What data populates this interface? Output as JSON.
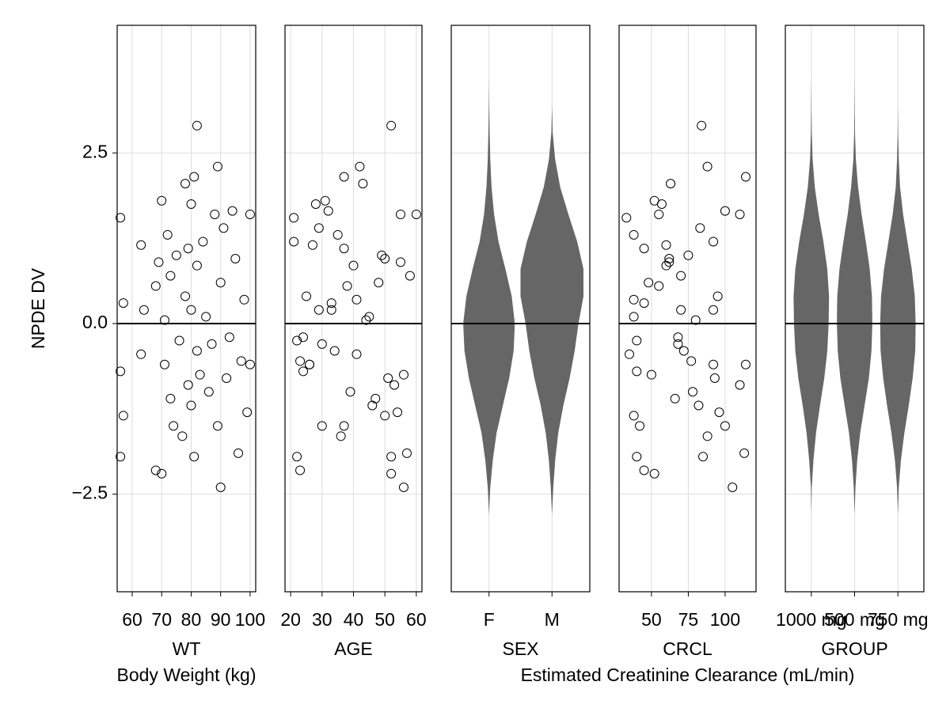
{
  "chart_data": [
    {
      "type": "scatter",
      "xlabel": "WT",
      "xlabel2": "Body Weight (kg)",
      "ylabel": "NPDE DV",
      "ytick_labels": true,
      "xlim": [
        54.9,
        101.9
      ],
      "xticks": [
        60,
        70,
        80,
        90,
        100
      ],
      "ylim": [
        -3.93,
        4.37
      ],
      "yticks": [
        {
          "value": -2.5,
          "label": "−2.5"
        },
        {
          "value": 0,
          "label": "0.0"
        },
        2.5
      ],
      "hline": 0,
      "grid": true,
      "color": "#000000",
      "x": [
        56,
        56,
        56,
        57,
        57,
        63,
        63,
        64,
        68,
        68,
        69,
        70,
        70,
        71,
        71,
        72,
        73,
        73,
        74,
        75,
        76,
        77,
        78,
        78,
        79,
        79,
        80,
        80,
        80,
        81,
        81,
        82,
        82,
        82,
        83,
        84,
        85,
        86,
        87,
        88,
        89,
        89,
        90,
        90,
        91,
        92,
        93,
        94,
        95,
        96,
        97,
        98,
        99,
        100,
        100
      ],
      "y": [
        1.55,
        -0.7,
        -1.95,
        0.3,
        -1.35,
        1.15,
        -0.45,
        0.2,
        -2.15,
        0.55,
        0.9,
        1.8,
        -2.2,
        0.05,
        -0.6,
        1.3,
        -1.1,
        0.7,
        -1.5,
        1.0,
        -0.25,
        -1.65,
        2.05,
        0.4,
        -0.9,
        1.1,
        1.75,
        -1.2,
        0.2,
        2.15,
        -1.95,
        2.9,
        0.85,
        -0.4,
        -0.75,
        1.2,
        0.1,
        -1.0,
        -0.3,
        1.6,
        2.3,
        -1.5,
        -2.4,
        0.6,
        1.4,
        -0.8,
        -0.2,
        1.65,
        0.95,
        -1.9,
        -0.55,
        0.35,
        -1.3,
        1.6,
        -0.6
      ]
    },
    {
      "type": "scatter",
      "xlabel": "AGE",
      "ytick_labels": false,
      "xlim": [
        18.2,
        61.8
      ],
      "xticks": [
        20,
        30,
        40,
        50,
        60
      ],
      "ylim": [
        -3.93,
        4.37
      ],
      "yticks": [
        {
          "value": -2.5,
          "label": "−2.5"
        },
        {
          "value": 0,
          "label": "0.0"
        },
        2.5
      ],
      "hline": 0,
      "grid": true,
      "color": "#000000",
      "x": [
        21,
        24,
        22,
        33,
        50,
        27,
        41,
        29,
        23,
        38,
        55,
        31,
        52,
        44,
        26,
        35,
        47,
        58,
        30,
        49,
        22,
        36,
        43,
        25,
        53,
        37,
        28,
        46,
        33,
        37,
        52,
        52,
        40,
        34,
        56,
        21,
        45,
        39,
        30,
        55,
        42,
        37,
        56,
        48,
        29,
        51,
        24,
        32,
        50,
        57,
        23,
        41,
        54,
        60,
        26
      ],
      "y": [
        1.55,
        -0.7,
        -1.95,
        0.3,
        -1.35,
        1.15,
        -0.45,
        0.2,
        -2.15,
        0.55,
        0.9,
        1.8,
        -2.2,
        0.05,
        -0.6,
        1.3,
        -1.1,
        0.7,
        -1.5,
        1.0,
        -0.25,
        -1.65,
        2.05,
        0.4,
        -0.9,
        1.1,
        1.75,
        -1.2,
        0.2,
        2.15,
        -1.95,
        2.9,
        0.85,
        -0.4,
        -0.75,
        1.2,
        0.1,
        -1.0,
        -0.3,
        1.6,
        2.3,
        -1.5,
        -2.4,
        0.6,
        1.4,
        -0.8,
        -0.2,
        1.65,
        0.95,
        -1.9,
        -0.55,
        0.35,
        -1.3,
        1.6,
        -0.6
      ]
    },
    {
      "type": "violin",
      "xlabel": "SEX",
      "ytick_labels": false,
      "categories": [
        "F",
        "M"
      ],
      "ylim": [
        -3.93,
        4.37
      ],
      "yticks": [
        {
          "value": -2.5,
          "label": "−2.5"
        },
        {
          "value": 0,
          "label": "0.0"
        },
        2.5
      ],
      "hline": 0,
      "grid": true,
      "color": "#666666",
      "y_grid": [
        -2.8,
        -2.4,
        -2.0,
        -1.6,
        -1.2,
        -0.8,
        -0.4,
        0,
        0.4,
        0.8,
        1.2,
        1.6,
        2.0,
        2.4,
        2.8,
        3.2,
        3.6
      ],
      "densities": [
        [
          0,
          0.02,
          0.06,
          0.12,
          0.22,
          0.32,
          0.39,
          0.41,
          0.36,
          0.26,
          0.15,
          0.08,
          0.04,
          0.02,
          0.01,
          0.003,
          0
        ],
        [
          0,
          0.02,
          0.05,
          0.1,
          0.18,
          0.28,
          0.36,
          0.42,
          0.5,
          0.5,
          0.4,
          0.26,
          0.13,
          0.05,
          0.01,
          0,
          0
        ]
      ]
    },
    {
      "type": "scatter",
      "xlabel": "CRCL",
      "xlabel2": "Estimated Creatinine Clearance (mL/min)",
      "ytick_labels": false,
      "xlim": [
        28,
        121
      ],
      "xticks": [
        50,
        75,
        100
      ],
      "ylim": [
        -3.93,
        4.37
      ],
      "yticks": [
        {
          "value": -2.5,
          "label": "−2.5"
        },
        {
          "value": 0,
          "label": "0.0"
        },
        2.5
      ],
      "hline": 0,
      "grid": true,
      "color": "#000000",
      "x": [
        33,
        40,
        40,
        45,
        38,
        60,
        35,
        70,
        45,
        55,
        62,
        52,
        52,
        80,
        92,
        38,
        66,
        70,
        100,
        75,
        40,
        88,
        63,
        95,
        110,
        45,
        57,
        82,
        92,
        114,
        85,
        84,
        60,
        72,
        50,
        92,
        38,
        78,
        68,
        110,
        88,
        42,
        105,
        48,
        83,
        93,
        68,
        100,
        62,
        113,
        77,
        38,
        96,
        55,
        114
      ],
      "y": [
        1.55,
        -0.7,
        -1.95,
        0.3,
        -1.35,
        1.15,
        -0.45,
        0.2,
        -2.15,
        0.55,
        0.9,
        1.8,
        -2.2,
        0.05,
        -0.6,
        1.3,
        -1.1,
        0.7,
        -1.5,
        1.0,
        -0.25,
        -1.65,
        2.05,
        0.4,
        -0.9,
        1.1,
        1.75,
        -1.2,
        0.2,
        2.15,
        -1.95,
        2.9,
        0.85,
        -0.4,
        -0.75,
        1.2,
        0.1,
        -1.0,
        -0.3,
        1.6,
        2.3,
        -1.5,
        -2.4,
        0.6,
        1.4,
        -0.8,
        -0.2,
        1.65,
        0.95,
        -1.9,
        -0.55,
        0.35,
        -1.3,
        1.6,
        -0.6
      ]
    },
    {
      "type": "violin",
      "xlabel": "GROUP",
      "ytick_labels": false,
      "categories": [
        "1000 mg",
        "500 mg",
        "750 mg"
      ],
      "ylim": [
        -3.93,
        4.37
      ],
      "yticks": [
        {
          "value": -2.5,
          "label": "−2.5"
        },
        {
          "value": 0,
          "label": "0.0"
        },
        2.5
      ],
      "hline": 0,
      "grid": true,
      "color": "#666666",
      "y_grid": [
        -2.8,
        -2.4,
        -2.0,
        -1.6,
        -1.2,
        -0.8,
        -0.4,
        0,
        0.4,
        0.8,
        1.2,
        1.6,
        2.0,
        2.4,
        2.8,
        3.2,
        3.6
      ],
      "densities": [
        [
          0,
          0.01,
          0.05,
          0.11,
          0.2,
          0.3,
          0.37,
          0.4,
          0.41,
          0.37,
          0.28,
          0.17,
          0.08,
          0.03,
          0.01,
          0.004,
          0
        ],
        [
          0,
          0.02,
          0.06,
          0.13,
          0.23,
          0.33,
          0.39,
          0.41,
          0.4,
          0.35,
          0.26,
          0.16,
          0.08,
          0.03,
          0.01,
          0.004,
          0
        ],
        [
          0,
          0.02,
          0.07,
          0.15,
          0.25,
          0.34,
          0.4,
          0.41,
          0.39,
          0.32,
          0.22,
          0.12,
          0.05,
          0.02,
          0.005,
          0,
          0
        ]
      ]
    }
  ]
}
